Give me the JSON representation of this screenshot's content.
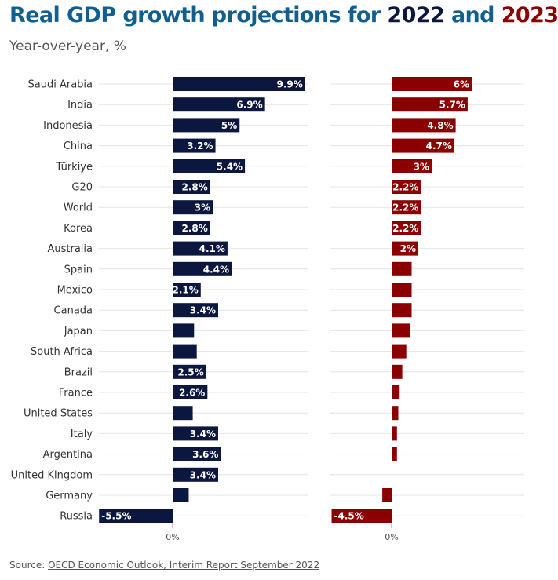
{
  "header": {
    "title_prefix": "Real GDP growth projections for ",
    "title_year1": "2022",
    "title_and": " and ",
    "title_year2": "2023",
    "subtitle": "Year-over-year, %"
  },
  "colors": {
    "title": "#0f5f90",
    "series_2022": "#0c1740",
    "series_2023": "#8b0000",
    "grid": "#e4e4e4"
  },
  "chart_data": {
    "type": "bar",
    "orientation": "horizontal",
    "title": "Real GDP growth projections for 2022 and 2023",
    "subtitle": "Year-over-year, %",
    "categories": [
      "Saudi Arabia",
      "India",
      "Indonesia",
      "China",
      "Türkiye",
      "G20",
      "World",
      "Korea",
      "Australia",
      "Spain",
      "Mexico",
      "Canada",
      "Japan",
      "South Africa",
      "Brazil",
      "France",
      "United States",
      "Italy",
      "Argentina",
      "United Kingdom",
      "Germany",
      "Russia"
    ],
    "series": [
      {
        "name": "2022",
        "color": "#0c1740",
        "values": [
          9.9,
          6.9,
          5,
          3.2,
          5.4,
          2.8,
          3,
          2.8,
          4.1,
          4.4,
          2.1,
          3.4,
          1.6,
          1.8,
          2.5,
          2.6,
          1.5,
          3.4,
          3.6,
          3.4,
          1.2,
          -5.5
        ],
        "labels": [
          "9.9%",
          "6.9%",
          "5%",
          "3.2%",
          "5.4%",
          "2.8%",
          "3%",
          "2.8%",
          "4.1%",
          "4.4%",
          "2.1%",
          "3.4%",
          "",
          "",
          "2.5%",
          "2.6%",
          "",
          "3.4%",
          "3.6%",
          "3.4%",
          "",
          "-5.5%"
        ],
        "zero_tick": "0%"
      },
      {
        "name": "2023",
        "color": "#8b0000",
        "values": [
          6,
          5.7,
          4.8,
          4.7,
          3,
          2.2,
          2.2,
          2.2,
          2,
          1.5,
          1.5,
          1.5,
          1.4,
          1.1,
          0.8,
          0.6,
          0.5,
          0.4,
          0.4,
          0,
          -0.7,
          -4.5
        ],
        "labels": [
          "6%",
          "5.7%",
          "4.8%",
          "4.7%",
          "3%",
          "2.2%",
          "2.2%",
          "2.2%",
          "2%",
          "",
          "",
          "",
          "",
          "",
          "",
          "",
          "",
          "",
          "",
          "",
          "",
          "-4.5%"
        ],
        "zero_tick": "0%"
      }
    ],
    "xlabel": "",
    "ylabel": ""
  },
  "footer": {
    "source_prefix": "Source: ",
    "source_link": "OECD Economic Outlook, Interim Report September 2022"
  }
}
